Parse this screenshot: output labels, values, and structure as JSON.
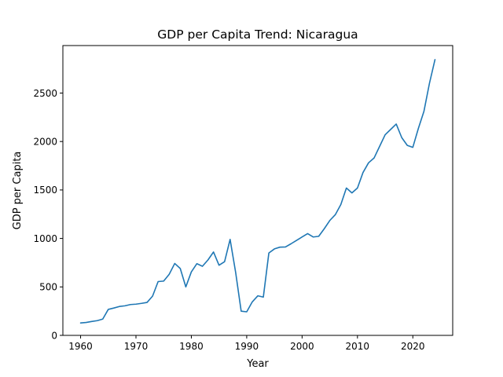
{
  "chart_data": {
    "type": "line",
    "title": "GDP per Capita Trend: Nicaragua",
    "xlabel": "Year",
    "ylabel": "GDP per Capita",
    "xlim": [
      1956.8,
      2027.2
    ],
    "ylim": [
      0,
      2990
    ],
    "xticks": [
      1960,
      1970,
      1980,
      1990,
      2000,
      2010,
      2020
    ],
    "yticks": [
      0,
      500,
      1000,
      1500,
      2000,
      2500
    ],
    "grid": false,
    "legend": "none",
    "series": [
      {
        "color": "#1f77b4",
        "x": [
          1960,
          1961,
          1962,
          1963,
          1964,
          1965,
          1966,
          1967,
          1968,
          1969,
          1970,
          1971,
          1972,
          1973,
          1974,
          1975,
          1976,
          1977,
          1978,
          1979,
          1980,
          1981,
          1982,
          1983,
          1984,
          1985,
          1986,
          1987,
          1988,
          1989,
          1990,
          1991,
          1992,
          1993,
          1994,
          1995,
          1996,
          1997,
          1998,
          1999,
          2000,
          2001,
          2002,
          2003,
          2004,
          2005,
          2006,
          2007,
          2008,
          2009,
          2010,
          2011,
          2012,
          2013,
          2014,
          2015,
          2016,
          2017,
          2018,
          2019,
          2020,
          2021,
          2022,
          2023,
          2024
        ],
        "y": [
          128,
          133,
          143,
          152,
          168,
          268,
          282,
          298,
          305,
          318,
          322,
          330,
          340,
          405,
          555,
          560,
          630,
          742,
          690,
          500,
          655,
          740,
          713,
          778,
          860,
          724,
          760,
          990,
          650,
          250,
          243,
          345,
          408,
          395,
          850,
          892,
          910,
          912,
          945,
          980,
          1015,
          1050,
          1015,
          1022,
          1100,
          1185,
          1245,
          1350,
          1520,
          1470,
          1520,
          1680,
          1780,
          1830,
          1950,
          2070,
          2125,
          2180,
          2040,
          1960,
          1940,
          2135,
          2310,
          2600,
          2845
        ]
      }
    ]
  }
}
